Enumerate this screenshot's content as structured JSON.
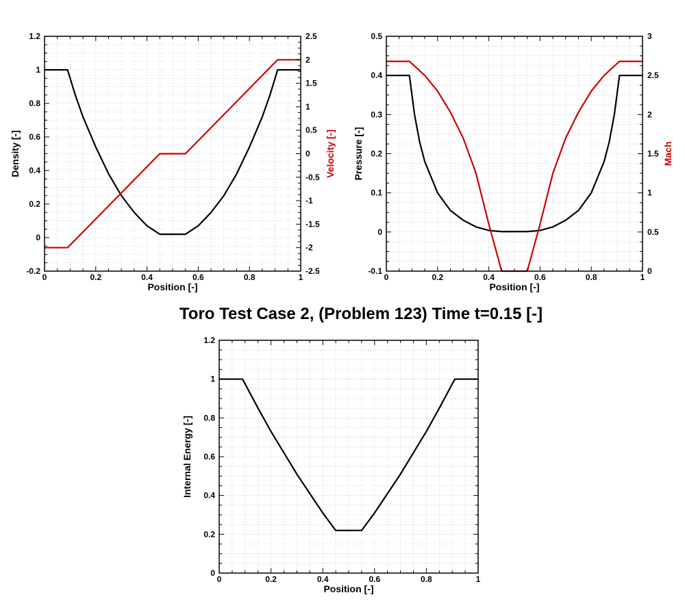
{
  "suptitle": "Toro Test Case 2, (Problem 123) Time t=0.15 [-]",
  "colors": {
    "primary": "#000000",
    "secondary": "#cc0000",
    "grid": "#cccccc"
  },
  "chart_data": [
    {
      "type": "line",
      "xlabel": "Position [-]",
      "ylabel": "Density [-]",
      "y2label": "Velocity [-]",
      "xlim": [
        0,
        1
      ],
      "ylim": [
        -0.2,
        1.2
      ],
      "y2lim": [
        -2.5,
        2.5
      ],
      "xticks": [
        "0",
        "0.2",
        "0.4",
        "0.6",
        "0.8",
        "1"
      ],
      "yticks": [
        "-0.2",
        "0",
        "0.2",
        "0.4",
        "0.6",
        "0.8",
        "1",
        "1.2"
      ],
      "y2ticks": [
        "-2.5",
        "-2",
        "-1.5",
        "-1",
        "-0.5",
        "0",
        "0.5",
        "1",
        "1.5",
        "2",
        "2.5"
      ],
      "grid": true,
      "series": [
        {
          "axis": "left",
          "color": "#000000",
          "x": [
            0,
            0.09,
            0.12,
            0.15,
            0.2,
            0.25,
            0.3,
            0.35,
            0.4,
            0.45,
            0.55,
            0.6,
            0.65,
            0.7,
            0.75,
            0.8,
            0.85,
            0.88,
            0.91,
            1
          ],
          "y": [
            1,
            1,
            0.85,
            0.72,
            0.54,
            0.38,
            0.25,
            0.15,
            0.07,
            0.02,
            0.02,
            0.07,
            0.15,
            0.25,
            0.38,
            0.54,
            0.72,
            0.85,
            1,
            1
          ]
        },
        {
          "axis": "right",
          "color": "#cc0000",
          "x": [
            0,
            0.09,
            0.45,
            0.55,
            0.91,
            1
          ],
          "y": [
            -2,
            -2,
            0,
            0,
            2,
            2
          ]
        }
      ]
    },
    {
      "type": "line",
      "xlabel": "Position [-]",
      "ylabel": "Pressure [-]",
      "y2label": "Mach",
      "xlim": [
        0,
        1
      ],
      "ylim": [
        -0.1,
        0.5
      ],
      "y2lim": [
        0,
        3
      ],
      "xticks": [
        "0",
        "0.2",
        "0.4",
        "0.6",
        "0.8",
        "1"
      ],
      "yticks": [
        "-0.1",
        "0",
        "0.1",
        "0.2",
        "0.3",
        "0.4",
        "0.5"
      ],
      "y2ticks": [
        "0",
        "0.5",
        "1",
        "1.5",
        "2",
        "2.5",
        "3"
      ],
      "grid": true,
      "series": [
        {
          "axis": "left",
          "color": "#000000",
          "x": [
            0,
            0.09,
            0.11,
            0.13,
            0.15,
            0.2,
            0.25,
            0.3,
            0.35,
            0.4,
            0.45,
            0.55,
            0.6,
            0.65,
            0.7,
            0.75,
            0.8,
            0.85,
            0.87,
            0.89,
            0.91,
            1
          ],
          "y": [
            0.4,
            0.4,
            0.3,
            0.23,
            0.18,
            0.1,
            0.055,
            0.03,
            0.013,
            0.004,
            0.001,
            0.001,
            0.004,
            0.013,
            0.03,
            0.055,
            0.1,
            0.18,
            0.23,
            0.3,
            0.4,
            0.4
          ]
        },
        {
          "axis": "right",
          "color": "#cc0000",
          "x": [
            0,
            0.09,
            0.15,
            0.2,
            0.25,
            0.3,
            0.35,
            0.4,
            0.45,
            0.55,
            0.6,
            0.65,
            0.7,
            0.75,
            0.8,
            0.85,
            0.91,
            1
          ],
          "y": [
            2.68,
            2.68,
            2.5,
            2.3,
            2.03,
            1.7,
            1.25,
            0.6,
            0,
            0,
            0.6,
            1.25,
            1.7,
            2.03,
            2.3,
            2.5,
            2.68,
            2.68
          ]
        }
      ]
    },
    {
      "type": "line",
      "xlabel": "Position [-]",
      "ylabel": "Internal Energy [-]",
      "xlim": [
        0,
        1
      ],
      "ylim": [
        0,
        1.2
      ],
      "xticks": [
        "0",
        "0.2",
        "0.4",
        "0.6",
        "0.8",
        "1"
      ],
      "yticks": [
        "0",
        "0.2",
        "0.4",
        "0.6",
        "0.8",
        "1",
        "1.2"
      ],
      "grid": true,
      "series": [
        {
          "axis": "left",
          "color": "#000000",
          "x": [
            0,
            0.09,
            0.15,
            0.2,
            0.25,
            0.3,
            0.35,
            0.4,
            0.45,
            0.55,
            0.6,
            0.65,
            0.7,
            0.75,
            0.8,
            0.85,
            0.91,
            1
          ],
          "y": [
            1,
            1,
            0.85,
            0.73,
            0.62,
            0.51,
            0.41,
            0.31,
            0.22,
            0.22,
            0.31,
            0.41,
            0.51,
            0.62,
            0.73,
            0.85,
            1,
            1
          ]
        }
      ]
    }
  ]
}
